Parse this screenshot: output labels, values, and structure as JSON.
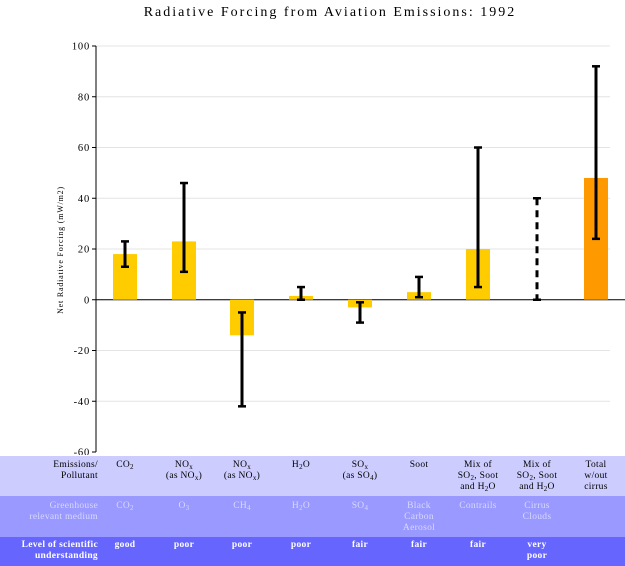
{
  "chart_data": {
    "type": "bar",
    "title": "Radiative Forcing from Aviation Emissions: 1992",
    "ylabel": "Net Radiative Forcing (mW/m2)",
    "xlabel": "",
    "ylim": [
      -60,
      100
    ],
    "yticks": [
      -60,
      -40,
      -20,
      0,
      20,
      40,
      60,
      80,
      100
    ],
    "grid": true,
    "categories": [
      "CO2",
      "NOx (as NOx)",
      "NOx (as NOx)",
      "H2O",
      "SOx (as SO4)",
      "Soot",
      "Mix of SO2, Soot and H2O",
      "Mix of SO2, Soot and H2O",
      "Total w/out cirrus"
    ],
    "values": [
      18,
      23,
      -14,
      1.5,
      -3,
      3,
      20,
      null,
      48
    ],
    "error_low": [
      13,
      11,
      -42,
      0,
      -9,
      1,
      5,
      0,
      24
    ],
    "error_high": [
      23,
      46,
      -5,
      5,
      -1,
      9,
      60,
      40,
      92
    ],
    "error_style": [
      "solid",
      "solid",
      "solid",
      "solid",
      "solid",
      "solid",
      "solid",
      "dashed",
      "solid"
    ],
    "bar_colors": [
      "#ffcc00",
      "#ffcc00",
      "#ffcc00",
      "#ffcc00",
      "#ffcc00",
      "#ffcc00",
      "#ffcc00",
      "#ffcc00",
      "#ff9900"
    ]
  },
  "table": {
    "headers": {
      "emissions": [
        "Emissions/",
        "Pollutant"
      ],
      "medium": [
        "Greenhouse",
        "relevant medium"
      ],
      "level": [
        "Level of scientific",
        "understanding"
      ]
    },
    "emissions": [
      "CO<sub>2</sub>",
      "NO<sub>x</sub><br>(as NO<sub>x</sub>)",
      "NO<sub>x</sub><br>(as NO<sub>x</sub>)",
      "H<sub>2</sub>O",
      "SO<sub>x</sub><br>(as SO<sub>4</sub>)",
      "Soot",
      "Mix of<br>SO<sub>2</sub>, Soot<br>and H<sub>2</sub>O",
      "Mix of<br>SO<sub>2</sub>, Soot<br>and H<sub>2</sub>O",
      "Total<br>w/out<br>cirrus"
    ],
    "medium": [
      "CO<sub>2</sub>",
      "O<sub>3</sub>",
      "CH<sub>4</sub>",
      "H<sub>2</sub>O",
      "SO<sub>4</sub>",
      "Black<br>Carbon<br>Aerosol",
      "Contrails",
      "Cirrus<br>Clouds",
      ""
    ],
    "level": [
      "good",
      "poor",
      "poor",
      "poor",
      "fair",
      "fair",
      "fair",
      "very<br>poor",
      ""
    ]
  },
  "colors": {
    "bar": "#ffcc00",
    "total_bar": "#ff9900",
    "row_emissions": "#ccccff",
    "row_medium": "#9999ff",
    "row_level": "#6666ff",
    "error": "#000000"
  }
}
